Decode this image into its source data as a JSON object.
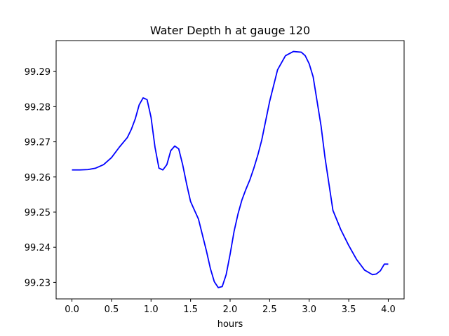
{
  "chart_data": {
    "type": "line",
    "title": "Water Depth h at gauge 120",
    "xlabel": "hours",
    "ylabel": "",
    "xlim": [
      -0.2,
      4.2
    ],
    "ylim": [
      99.2253,
      99.2988
    ],
    "xticks": [
      0.0,
      0.5,
      1.0,
      1.5,
      2.0,
      2.5,
      3.0,
      3.5,
      4.0
    ],
    "xtick_labels": [
      "0.0",
      "0.5",
      "1.0",
      "1.5",
      "2.0",
      "2.5",
      "3.0",
      "3.5",
      "4.0"
    ],
    "yticks": [
      99.23,
      99.24,
      99.25,
      99.26,
      99.27,
      99.28,
      99.29
    ],
    "ytick_labels": [
      "99.23",
      "99.24",
      "99.25",
      "99.26",
      "99.27",
      "99.28",
      "99.29"
    ],
    "grid": false,
    "series": [
      {
        "color": "#0000ff",
        "x": [
          0.0,
          0.1,
          0.2,
          0.3,
          0.4,
          0.5,
          0.6,
          0.7,
          0.75,
          0.8,
          0.85,
          0.9,
          0.95,
          1.0,
          1.05,
          1.1,
          1.15,
          1.2,
          1.25,
          1.3,
          1.35,
          1.4,
          1.45,
          1.5,
          1.55,
          1.6,
          1.65,
          1.7,
          1.75,
          1.8,
          1.85,
          1.9,
          1.95,
          2.0,
          2.05,
          2.1,
          2.15,
          2.2,
          2.25,
          2.3,
          2.35,
          2.4,
          2.5,
          2.6,
          2.7,
          2.8,
          2.9,
          2.95,
          3.0,
          3.05,
          3.1,
          3.15,
          3.2,
          3.3,
          3.4,
          3.5,
          3.6,
          3.7,
          3.8,
          3.85,
          3.9,
          3.95,
          4.0
        ],
        "y": [
          99.262,
          99.262,
          99.2621,
          99.2625,
          99.2635,
          99.2655,
          99.2685,
          99.2712,
          99.2735,
          99.2765,
          99.2805,
          99.2825,
          99.282,
          99.277,
          99.2685,
          99.2625,
          99.262,
          99.2635,
          99.2675,
          99.2688,
          99.268,
          99.2635,
          99.258,
          99.253,
          99.2505,
          99.248,
          99.2435,
          99.239,
          99.234,
          99.2302,
          99.2285,
          99.2288,
          99.2322,
          99.238,
          99.2445,
          99.2495,
          99.2535,
          99.2565,
          99.2592,
          99.2625,
          99.2662,
          99.2705,
          99.2815,
          99.2905,
          99.2945,
          99.2957,
          99.2955,
          99.2945,
          99.2922,
          99.2885,
          99.2815,
          99.2745,
          99.2655,
          99.2505,
          99.245,
          99.2405,
          99.2365,
          99.2335,
          99.2322,
          99.2324,
          99.2333,
          99.2352,
          99.2352
        ]
      }
    ]
  }
}
